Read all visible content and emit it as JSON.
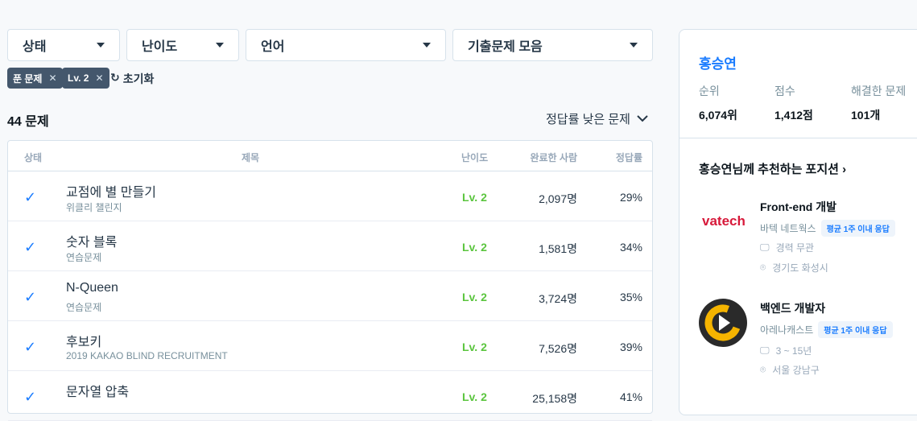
{
  "filters": {
    "status": "상태",
    "level": "난이도",
    "language": "언어",
    "collection": "기출문제 모음"
  },
  "chips": [
    {
      "label": "푼 문제"
    },
    {
      "label": "Lv. 2"
    }
  ],
  "reset_label": "초기화",
  "count": "44 문제",
  "sort_label": "정답률 낮은 문제",
  "table": {
    "headers": {
      "status": "상태",
      "title": "제목",
      "level": "난이도",
      "done": "완료한 사람",
      "rate": "정답률"
    },
    "rows": [
      {
        "title": "교점에 별 만들기",
        "sub": "위클리 챌린지",
        "level": "Lv. 2",
        "done": "2,097명",
        "rate": "29%"
      },
      {
        "title": "숫자 블록",
        "sub": "연습문제",
        "level": "Lv. 2",
        "done": "1,581명",
        "rate": "34%"
      },
      {
        "title": "N-Queen",
        "sub": "연습문제",
        "level": "Lv. 2",
        "done": "3,724명",
        "rate": "35%"
      },
      {
        "title": "후보키",
        "sub": "2019 KAKAO BLIND RECRUITMENT",
        "level": "Lv. 2",
        "done": "7,526명",
        "rate": "39%"
      },
      {
        "title": "문자열 압축",
        "sub": "",
        "level": "Lv. 2",
        "done": "25,158명",
        "rate": "41%"
      }
    ]
  },
  "profile": {
    "name": "홍승연",
    "rank_label": "순위",
    "rank": "6,074위",
    "score_label": "점수",
    "score": "1,412점",
    "solved_label": "해결한 문제",
    "solved": "101개"
  },
  "recommend_title": "홍승연님께 추천하는 포지션",
  "jobs": [
    {
      "position": "Front-end 개발",
      "company": "바텍 네트웍스",
      "logo": "vatech",
      "badge": "평균 1주 이내 응답",
      "career": "경력 무관",
      "location": "경기도 화성시"
    },
    {
      "position": "백엔드 개발자",
      "company": "아레나캐스트",
      "badge": "평균 1주 이내 응답",
      "career": "3 ~ 15년",
      "location": "서울 강남구"
    }
  ],
  "colors": {
    "accent": "#1a7cff",
    "level": "#5bc53e",
    "chip": "#44576c"
  }
}
